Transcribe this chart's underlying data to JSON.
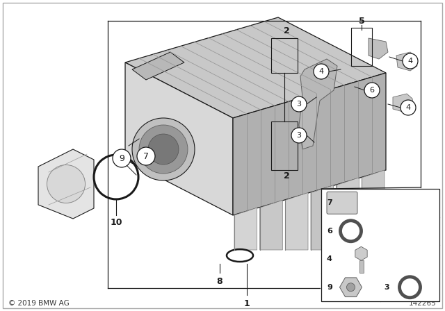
{
  "bg_color": "#ffffff",
  "copyright": "© 2019 BMW AG",
  "part_number": "142265",
  "fig_width": 6.4,
  "fig_height": 4.48,
  "dpi": 100,
  "line_color": "#1a1a1a",
  "gray_light": "#e8e8e8",
  "gray_mid": "#c0c0c0",
  "gray_dark": "#909090",
  "manifold_top": "#c8c8c8",
  "manifold_side": "#b0b0b0",
  "manifold_front": "#d8d8d8",
  "tube_light": "#d0d0d0",
  "tube_dark": "#a0a0a0",
  "throttle_fill": "#e4e4e4",
  "oring_color": "#505050"
}
